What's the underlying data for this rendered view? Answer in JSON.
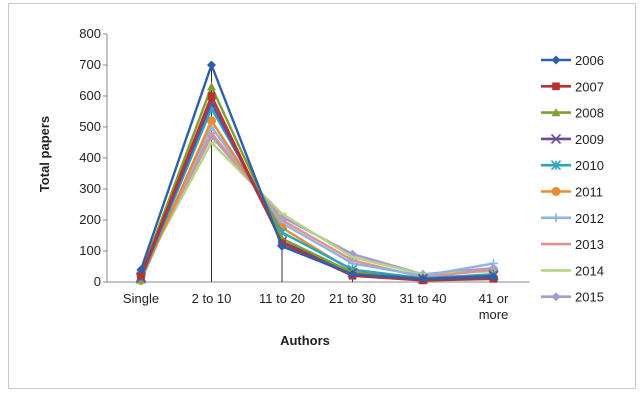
{
  "chart_data": {
    "type": "line",
    "title": "",
    "xlabel": "Authors",
    "ylabel": "Total papers",
    "ylim": [
      0,
      800
    ],
    "yticks": [
      0,
      100,
      200,
      300,
      400,
      500,
      600,
      700,
      800
    ],
    "grid": false,
    "legend": "right",
    "categories": [
      "Single",
      "2 to 10",
      "11 to 20",
      "21 to 30",
      "31 to 40",
      "41 or more"
    ],
    "category_lines": [
      [
        "Single"
      ],
      [
        "2 to 10"
      ],
      [
        "11 to 20"
      ],
      [
        "21 to 30"
      ],
      [
        "31 to 40"
      ],
      [
        "41 or",
        "more"
      ]
    ],
    "series": [
      {
        "name": "2006",
        "color": "#2e5fa8",
        "marker": "diamond",
        "values": [
          40,
          700,
          115,
          25,
          10,
          15
        ]
      },
      {
        "name": "2007",
        "color": "#b8332e",
        "marker": "square",
        "values": [
          20,
          600,
          125,
          20,
          5,
          10
        ]
      },
      {
        "name": "2008",
        "color": "#7f9f32",
        "marker": "triangle",
        "values": [
          25,
          630,
          140,
          30,
          8,
          12
        ]
      },
      {
        "name": "2009",
        "color": "#6b4a94",
        "marker": "x",
        "values": [
          15,
          580,
          130,
          30,
          10,
          20
        ]
      },
      {
        "name": "2010",
        "color": "#2aa6bf",
        "marker": "star",
        "values": [
          10,
          560,
          160,
          40,
          12,
          25
        ]
      },
      {
        "name": "2011",
        "color": "#ee8a2f",
        "marker": "circle",
        "values": [
          5,
          520,
          175,
          35,
          10,
          15
        ]
      },
      {
        "name": "2012",
        "color": "#8fb4e0",
        "marker": "plus",
        "values": [
          20,
          500,
          190,
          60,
          20,
          60
        ]
      },
      {
        "name": "2013",
        "color": "#e0908e",
        "marker": "dash",
        "values": [
          25,
          480,
          200,
          70,
          15,
          40
        ]
      },
      {
        "name": "2014",
        "color": "#b4d486",
        "marker": "dash",
        "values": [
          30,
          450,
          220,
          80,
          25,
          35
        ]
      },
      {
        "name": "2015",
        "color": "#a89ad0",
        "marker": "diamond",
        "values": [
          35,
          470,
          210,
          90,
          25,
          45
        ]
      }
    ]
  }
}
